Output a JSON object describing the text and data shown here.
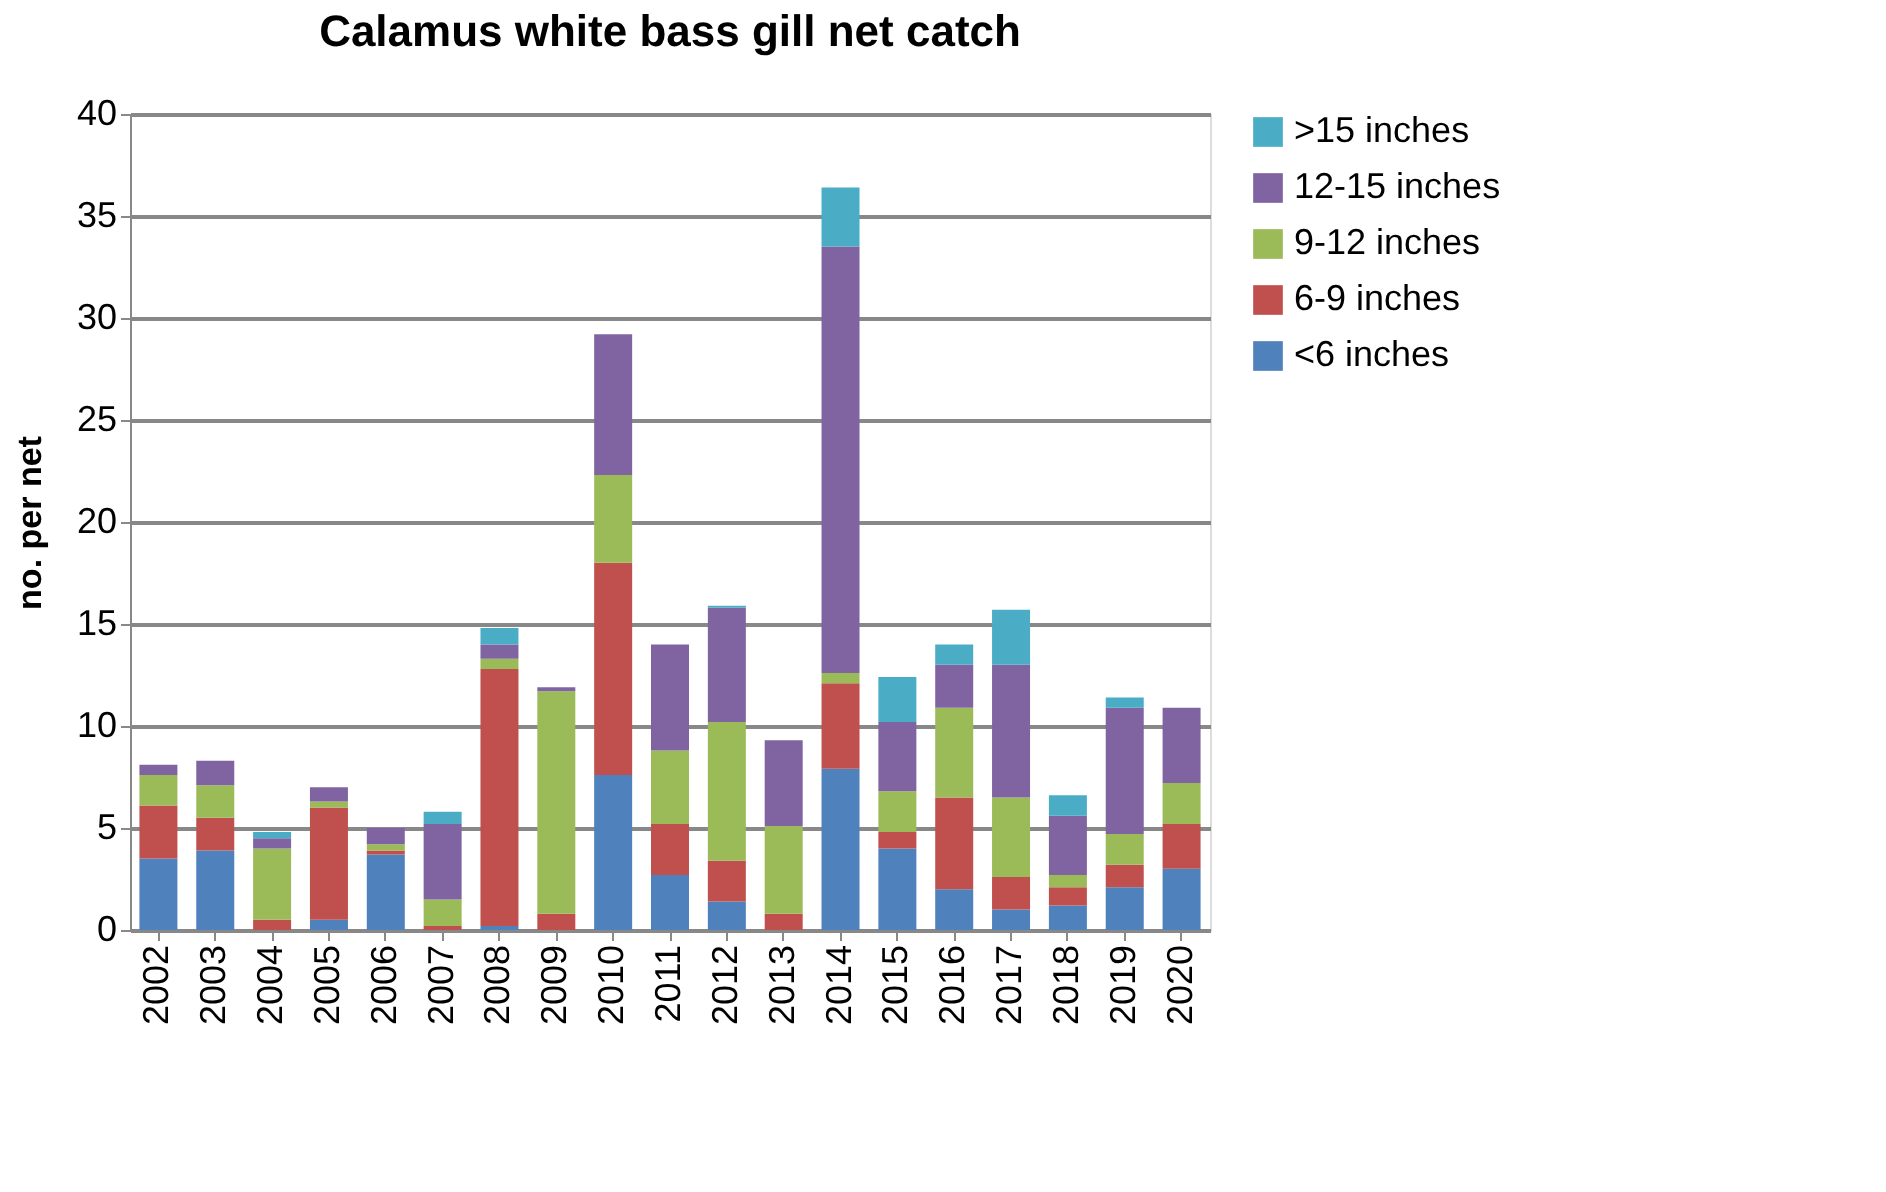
{
  "chart_data": {
    "type": "bar",
    "title": "Calamus white bass gill net catch",
    "ylabel": "no. per net",
    "categories": [
      "2002",
      "2003",
      "2004",
      "2005",
      "2006",
      "2007",
      "2008",
      "2009",
      "2010",
      "2011",
      "2012",
      "2013",
      "2014",
      "2015",
      "2016",
      "2017",
      "2018",
      "2019",
      "2020"
    ],
    "stacked": true,
    "ylim": [
      0,
      40
    ],
    "yticks": [
      0,
      5,
      10,
      15,
      20,
      25,
      30,
      35,
      40
    ],
    "grid": "y",
    "legend": "right",
    "series": [
      {
        "name": "<6 inches",
        "color": "#4f81bd",
        "values": [
          3.5,
          3.9,
          0,
          0.5,
          3.7,
          0,
          0.2,
          0,
          7.6,
          2.7,
          1.4,
          0,
          7.9,
          4.0,
          2.0,
          1.0,
          1.2,
          2.1,
          3.0
        ]
      },
      {
        "name": "6-9 inches",
        "color": "#c0504d",
        "values": [
          2.6,
          1.6,
          0.5,
          5.5,
          0.2,
          0.2,
          12.6,
          0.8,
          10.4,
          2.5,
          2.0,
          0.8,
          4.2,
          0.8,
          4.5,
          1.6,
          0.9,
          1.1,
          2.2
        ]
      },
      {
        "name": "9-12 inches",
        "color": "#9bbb59",
        "values": [
          1.5,
          1.6,
          3.5,
          0.3,
          0.3,
          1.3,
          0.5,
          10.9,
          4.3,
          3.6,
          6.8,
          4.3,
          0.5,
          2.0,
          4.4,
          3.9,
          0.6,
          1.5,
          2.0
        ]
      },
      {
        "name": "12-15 inches",
        "color": "#8064a2",
        "values": [
          0.5,
          1.2,
          0.5,
          0.7,
          0.8,
          3.7,
          0.7,
          0.2,
          6.9,
          5.2,
          5.6,
          4.2,
          20.9,
          3.4,
          2.1,
          6.5,
          2.9,
          6.2,
          3.7
        ]
      },
      {
        "name": ">15 inches",
        "color": "#4bacc6",
        "values": [
          0,
          0,
          0.3,
          0,
          0,
          0.6,
          0.8,
          0,
          0,
          0,
          0.1,
          0,
          2.9,
          2.2,
          1.0,
          2.7,
          1.0,
          0.5,
          0
        ]
      }
    ]
  }
}
